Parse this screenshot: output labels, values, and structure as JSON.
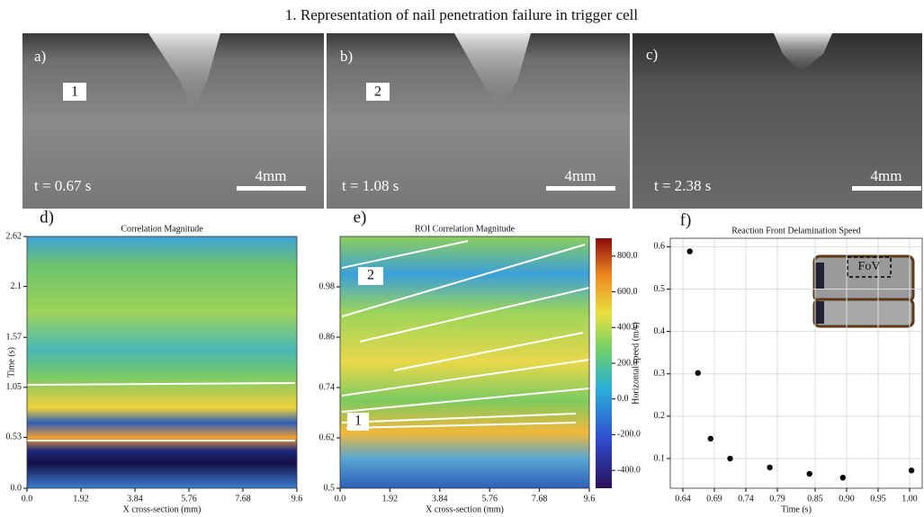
{
  "title": "1. Representation of nail penetration failure in trigger cell",
  "panels": [
    {
      "label": "a)",
      "marker": "1",
      "time": "t = 0.67 s",
      "scale": "4mm"
    },
    {
      "label": "b)",
      "marker": "2",
      "time": "t = 1.08 s",
      "scale": "4mm"
    },
    {
      "label": "c)",
      "time": "t = 2.38 s",
      "scale": "4mm"
    }
  ],
  "chart_data": [
    {
      "type": "heatmap",
      "label": "d)",
      "title": "Correlation Magnitude",
      "xlabel": "X cross-section (mm)",
      "ylabel": "Time (s)",
      "xlim": [
        0,
        9.6
      ],
      "ylim": [
        0,
        2.62
      ],
      "xticks": [
        {
          "value": 0,
          "label": "0.0"
        },
        1.92,
        3.84,
        5.76,
        7.68,
        9.6
      ],
      "yticks": [
        {
          "value": 0,
          "label": "0.0"
        },
        0.53,
        1.05,
        1.57,
        2.1,
        2.62
      ]
    },
    {
      "type": "heatmap",
      "label": "e)",
      "title": "ROI Correlation Magnitude",
      "xlabel": "X cross-section (mm)",
      "xlim": [
        0,
        9.6
      ],
      "ylim": [
        0.5,
        1.1
      ],
      "xticks": [
        {
          "value": 0,
          "label": "0.0"
        },
        1.92,
        3.84,
        5.76,
        7.68,
        9.6
      ],
      "yticks": [
        0.5,
        0.62,
        0.74,
        0.86,
        0.98
      ],
      "clim": [
        -500,
        900
      ],
      "cticks": [
        {
          "value": -400,
          "label": "-400.0"
        },
        {
          "value": -200,
          "label": "-200.0"
        },
        {
          "value": 0,
          "label": "0.0"
        },
        {
          "value": 200,
          "label": "200.0"
        },
        {
          "value": 400,
          "label": "400.0"
        },
        {
          "value": 600,
          "label": "600.0"
        },
        {
          "value": 800,
          "label": "800.0"
        }
      ],
      "markers": [
        "1",
        "2"
      ]
    },
    {
      "type": "scatter",
      "label": "f)",
      "title": "Reaction Front Delamination Speed",
      "xlabel": "Time (s)",
      "ylabel": "Horizontal speed (m/s)",
      "x": [
        0.651,
        0.664,
        0.684,
        0.715,
        0.778,
        0.841,
        0.894,
        1.003
      ],
      "values": [
        0.589,
        0.302,
        0.147,
        0.1,
        0.079,
        0.064,
        0.055,
        0.072
      ],
      "color": "#000000",
      "xlim": [
        0.62,
        1.02
      ],
      "ylim": [
        0.03,
        0.62
      ],
      "xticks": [
        0.64,
        0.69,
        0.74,
        0.79,
        0.85,
        {
          "value": 0.9,
          "label": "0.90"
        },
        0.95,
        {
          "value": 1,
          "label": "1.00"
        }
      ],
      "yticks": [
        0.1,
        0.2,
        0.3,
        0.4,
        0.5,
        0.6
      ],
      "grid": true,
      "inset": "FoV"
    }
  ]
}
